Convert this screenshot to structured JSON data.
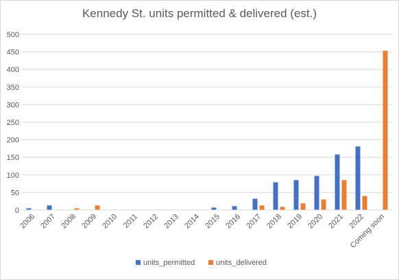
{
  "chart_data": {
    "type": "bar",
    "title": "Kennedy St. units permitted & delivered (est.)",
    "xlabel": "",
    "ylabel": "",
    "categories": [
      "2006",
      "2007",
      "2008",
      "2009",
      "2010",
      "2011",
      "2012",
      "2013",
      "2014",
      "2015",
      "2016",
      "2017",
      "2018",
      "2019",
      "2020",
      "2021",
      "2022",
      "Coming soon"
    ],
    "series": [
      {
        "name": "units_permitted",
        "color": "#4472C4",
        "values": [
          5,
          13,
          0,
          0,
          0,
          0,
          0,
          0,
          0,
          7,
          11,
          32,
          79,
          85,
          97,
          158,
          181,
          0
        ]
      },
      {
        "name": "units_delivered",
        "color": "#ED7D31",
        "values": [
          0,
          0,
          5,
          13,
          0,
          0,
          0,
          0,
          0,
          0,
          0,
          13,
          9,
          19,
          30,
          85,
          40,
          453
        ]
      }
    ],
    "ylim": [
      0,
      500
    ],
    "yticks": [
      0,
      50,
      100,
      150,
      200,
      250,
      300,
      350,
      400,
      450,
      500
    ],
    "grid": true,
    "legend": "bottom-center"
  }
}
